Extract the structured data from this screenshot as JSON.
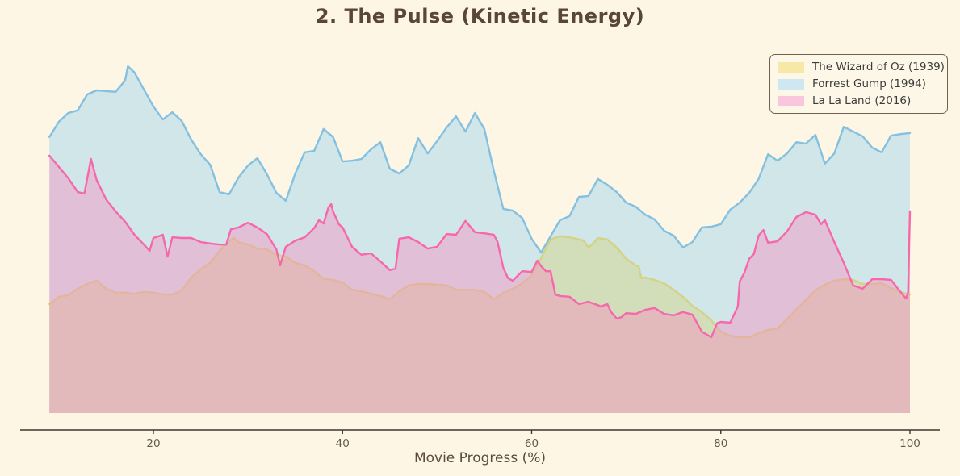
{
  "title": "2. The Pulse (Kinetic Energy)",
  "x_axis": {
    "label": "Movie Progress (%)",
    "ticks": [
      20,
      40,
      60,
      80,
      100
    ]
  },
  "colors": {
    "background": "#FDF6E5",
    "title_text": "#59453A",
    "axis_text": "#655A4C",
    "axis_line": "#3D372E",
    "legend_border": "#70604F",
    "legend_text": "#3C3C3C",
    "wizard_line": "#FFD21E",
    "forrest_line": "#84C0E0",
    "lala_line": "#F767AC"
  },
  "legend": [
    {
      "label": "The Wizard of Oz (1939)",
      "swatch": "#F7E8A8"
    },
    {
      "label": "Forrest Gump (1994)",
      "swatch": "#CFE7F1"
    },
    {
      "label": "La La Land (2016)",
      "swatch": "#FAC6DE"
    }
  ],
  "chart_data": {
    "type": "area",
    "title": "2. The Pulse (Kinetic Energy)",
    "xlabel": "Movie Progress (%)",
    "x_range": [
      9,
      100
    ],
    "xlim": [
      4,
      105
    ],
    "grid": false,
    "y_axis_visible": false,
    "y_unit": "kinetic energy (arbitrary units, 0-100)",
    "legend_position": "upper right",
    "series": [
      {
        "name": "The Wizard of Oz (1939)",
        "line_color": "#FFD21E",
        "fill_color": "#FFD32E",
        "fill_opacity": 0.5,
        "points": [
          [
            9,
            29.9
          ],
          [
            10,
            31.9
          ],
          [
            11,
            32.3
          ],
          [
            12,
            34.1
          ],
          [
            13,
            35.4
          ],
          [
            14,
            36.3
          ],
          [
            15,
            34.1
          ],
          [
            16,
            33
          ],
          [
            17,
            33
          ],
          [
            18,
            32.7
          ],
          [
            19,
            33.2
          ],
          [
            20,
            33
          ],
          [
            21,
            32.5
          ],
          [
            22,
            32.5
          ],
          [
            23,
            33.6
          ],
          [
            24,
            37.2
          ],
          [
            25,
            39.4
          ],
          [
            26,
            41.2
          ],
          [
            27,
            44.5
          ],
          [
            28,
            47.1
          ],
          [
            28.5,
            48
          ],
          [
            29,
            46.9
          ],
          [
            30,
            46.2
          ],
          [
            31,
            45.1
          ],
          [
            32,
            44.9
          ],
          [
            33,
            43.4
          ],
          [
            34,
            42.9
          ],
          [
            35,
            41.2
          ],
          [
            36,
            40.5
          ],
          [
            37,
            38.9
          ],
          [
            38,
            36.8
          ],
          [
            39,
            36.5
          ],
          [
            40,
            35.8
          ],
          [
            41,
            33.8
          ],
          [
            42,
            33.4
          ],
          [
            43,
            32.7
          ],
          [
            44,
            32.1
          ],
          [
            45,
            31.2
          ],
          [
            46,
            33.4
          ],
          [
            47,
            35
          ],
          [
            48,
            35.4
          ],
          [
            49,
            35.4
          ],
          [
            50,
            35.2
          ],
          [
            51,
            35
          ],
          [
            52,
            33.8
          ],
          [
            53,
            33.8
          ],
          [
            54,
            33.8
          ],
          [
            55,
            33.2
          ],
          [
            56,
            31.2
          ],
          [
            57,
            33
          ],
          [
            58,
            34.1
          ],
          [
            59,
            35.6
          ],
          [
            60,
            37.8
          ],
          [
            61,
            42.5
          ],
          [
            62,
            47.6
          ],
          [
            63,
            48.5
          ],
          [
            64,
            48.2
          ],
          [
            65,
            47.6
          ],
          [
            65.5,
            47.3
          ],
          [
            66,
            45.4
          ],
          [
            66.5,
            46.5
          ],
          [
            67,
            48
          ],
          [
            68,
            47.6
          ],
          [
            69,
            45.4
          ],
          [
            70,
            42.3
          ],
          [
            71,
            40.5
          ],
          [
            71.3,
            40.3
          ],
          [
            71.6,
            37
          ],
          [
            72,
            37.2
          ],
          [
            73,
            36.5
          ],
          [
            74,
            35.6
          ],
          [
            75,
            33.8
          ],
          [
            76,
            31.9
          ],
          [
            77,
            29.4
          ],
          [
            78,
            27.7
          ],
          [
            79,
            25.4
          ],
          [
            80,
            22.3
          ],
          [
            81,
            21.2
          ],
          [
            82,
            20.8
          ],
          [
            83,
            20.8
          ],
          [
            84,
            21.9
          ],
          [
            85,
            22.8
          ],
          [
            86,
            23.2
          ],
          [
            87,
            25.7
          ],
          [
            88,
            28.5
          ],
          [
            89,
            31
          ],
          [
            90,
            33.6
          ],
          [
            91,
            35.2
          ],
          [
            92,
            36.3
          ],
          [
            93,
            36.7
          ],
          [
            94,
            36.5
          ],
          [
            95,
            35.4
          ],
          [
            96,
            35.4
          ],
          [
            97,
            35.6
          ],
          [
            98,
            34.3
          ],
          [
            99,
            33.2
          ],
          [
            100,
            32.5
          ]
        ]
      },
      {
        "name": "Forrest Gump (1994)",
        "line_color": "#84C0E0",
        "fill_color": "#A5D5EC",
        "fill_opacity": 0.5,
        "points": [
          [
            9,
            75.7
          ],
          [
            10,
            79.9
          ],
          [
            11,
            82.3
          ],
          [
            12,
            83
          ],
          [
            13,
            87.4
          ],
          [
            14,
            88.5
          ],
          [
            15,
            88.3
          ],
          [
            16,
            88.1
          ],
          [
            17,
            91.2
          ],
          [
            17.3,
            95.1
          ],
          [
            18,
            93.4
          ],
          [
            19,
            88.7
          ],
          [
            20,
            84.1
          ],
          [
            21,
            80.5
          ],
          [
            22,
            82.5
          ],
          [
            23,
            80.1
          ],
          [
            24,
            75
          ],
          [
            25,
            71
          ],
          [
            26,
            68.1
          ],
          [
            27,
            60.6
          ],
          [
            28,
            60
          ],
          [
            29,
            64.6
          ],
          [
            30,
            67.9
          ],
          [
            31,
            69.9
          ],
          [
            32,
            65.5
          ],
          [
            33,
            60.4
          ],
          [
            34,
            58.2
          ],
          [
            35,
            65.7
          ],
          [
            36,
            71.5
          ],
          [
            37,
            71.9
          ],
          [
            38,
            77.9
          ],
          [
            39,
            75.7
          ],
          [
            40,
            69
          ],
          [
            41,
            69.2
          ],
          [
            42,
            69.7
          ],
          [
            43,
            72.3
          ],
          [
            44,
            74.3
          ],
          [
            45,
            67
          ],
          [
            46,
            65.7
          ],
          [
            47,
            67.9
          ],
          [
            48,
            75.4
          ],
          [
            49,
            71.2
          ],
          [
            50,
            74.6
          ],
          [
            51,
            78.3
          ],
          [
            52,
            81.4
          ],
          [
            53,
            77.2
          ],
          [
            54,
            82.3
          ],
          [
            55,
            77.9
          ],
          [
            56,
            66.4
          ],
          [
            57,
            56
          ],
          [
            58,
            55.5
          ],
          [
            59,
            53.5
          ],
          [
            60,
            47.8
          ],
          [
            61,
            44
          ],
          [
            62,
            48.5
          ],
          [
            63,
            52.9
          ],
          [
            64,
            54
          ],
          [
            65,
            59.3
          ],
          [
            66,
            59.5
          ],
          [
            67,
            64.2
          ],
          [
            68,
            62.6
          ],
          [
            69,
            60.6
          ],
          [
            70,
            57.7
          ],
          [
            71,
            56.6
          ],
          [
            72,
            54.4
          ],
          [
            73,
            53.1
          ],
          [
            74,
            50
          ],
          [
            75,
            48.7
          ],
          [
            76,
            45.4
          ],
          [
            77,
            46.9
          ],
          [
            78,
            50.9
          ],
          [
            79,
            51.1
          ],
          [
            80,
            51.8
          ],
          [
            81,
            55.8
          ],
          [
            82,
            57.7
          ],
          [
            83,
            60.4
          ],
          [
            84,
            64.2
          ],
          [
            85,
            71
          ],
          [
            86,
            69.2
          ],
          [
            87,
            71.2
          ],
          [
            88,
            74.3
          ],
          [
            89,
            73.9
          ],
          [
            90,
            76.3
          ],
          [
            91,
            68.4
          ],
          [
            92,
            71.2
          ],
          [
            93,
            78.5
          ],
          [
            94,
            77.2
          ],
          [
            95,
            75.9
          ],
          [
            96,
            72.8
          ],
          [
            97,
            71.5
          ],
          [
            98,
            76.1
          ],
          [
            99,
            76.5
          ],
          [
            100,
            76.8
          ]
        ]
      },
      {
        "name": "La La Land (2016)",
        "line_color": "#F767AC",
        "fill_color": "#F98BBE",
        "fill_opacity": 0.42,
        "points": [
          [
            9,
            70.6
          ],
          [
            10,
            67.5
          ],
          [
            11,
            64.4
          ],
          [
            12,
            60.6
          ],
          [
            12.7,
            60.2
          ],
          [
            13.4,
            69.7
          ],
          [
            14,
            63.9
          ],
          [
            15,
            58.6
          ],
          [
            16,
            55.3
          ],
          [
            17,
            52.5
          ],
          [
            18,
            48.9
          ],
          [
            19,
            46.2
          ],
          [
            19.6,
            44.5
          ],
          [
            20,
            48
          ],
          [
            21,
            48.9
          ],
          [
            21.5,
            42.9
          ],
          [
            22,
            48.2
          ],
          [
            23,
            48
          ],
          [
            24,
            48
          ],
          [
            25,
            46.9
          ],
          [
            26,
            46.5
          ],
          [
            27,
            46.2
          ],
          [
            27.7,
            46.2
          ],
          [
            28.2,
            50.4
          ],
          [
            29,
            50.9
          ],
          [
            30,
            52.2
          ],
          [
            31,
            50.9
          ],
          [
            32,
            49.1
          ],
          [
            33,
            44.9
          ],
          [
            33.4,
            40.5
          ],
          [
            34,
            45.6
          ],
          [
            35,
            47.3
          ],
          [
            36,
            48.2
          ],
          [
            37,
            50.7
          ],
          [
            37.5,
            52.9
          ],
          [
            38,
            52
          ],
          [
            38.5,
            56.4
          ],
          [
            38.8,
            57.3
          ],
          [
            39,
            55.3
          ],
          [
            39.6,
            51.8
          ],
          [
            40,
            50.9
          ],
          [
            41,
            45.6
          ],
          [
            42,
            43.4
          ],
          [
            43,
            43.8
          ],
          [
            44,
            41.6
          ],
          [
            45,
            39.2
          ],
          [
            45.6,
            39.6
          ],
          [
            46,
            47.8
          ],
          [
            47,
            48.2
          ],
          [
            48,
            46.9
          ],
          [
            49,
            45.1
          ],
          [
            50,
            45.6
          ],
          [
            51,
            49.1
          ],
          [
            52,
            48.9
          ],
          [
            53,
            52.7
          ],
          [
            54,
            49.6
          ],
          [
            55,
            49.3
          ],
          [
            56,
            48.9
          ],
          [
            56.4,
            46.9
          ],
          [
            57,
            39.8
          ],
          [
            57.5,
            37
          ],
          [
            58,
            36.3
          ],
          [
            59,
            38.9
          ],
          [
            60,
            38.7
          ],
          [
            60.6,
            41.8
          ],
          [
            61,
            40.3
          ],
          [
            61.5,
            38.9
          ],
          [
            62,
            38.9
          ],
          [
            62.5,
            32.5
          ],
          [
            63,
            32.1
          ],
          [
            64,
            31.9
          ],
          [
            65,
            29.9
          ],
          [
            66,
            30.5
          ],
          [
            67,
            29.6
          ],
          [
            67.3,
            29.2
          ],
          [
            68,
            29.9
          ],
          [
            68.4,
            27.7
          ],
          [
            69,
            25.9
          ],
          [
            69.5,
            26.3
          ],
          [
            70,
            27.4
          ],
          [
            71,
            27.2
          ],
          [
            72,
            28.3
          ],
          [
            73,
            28.8
          ],
          [
            74,
            27.2
          ],
          [
            75,
            26.8
          ],
          [
            76,
            27.7
          ],
          [
            77,
            27
          ],
          [
            78,
            22.3
          ],
          [
            79,
            20.8
          ],
          [
            79.6,
            24.6
          ],
          [
            80,
            25
          ],
          [
            81,
            24.8
          ],
          [
            81.8,
            29.2
          ],
          [
            82,
            36.1
          ],
          [
            82.5,
            38.5
          ],
          [
            83,
            42.3
          ],
          [
            83.5,
            43.6
          ],
          [
            84,
            48.7
          ],
          [
            84.5,
            50.2
          ],
          [
            85,
            46.7
          ],
          [
            86,
            47.1
          ],
          [
            87,
            49.8
          ],
          [
            88,
            53.8
          ],
          [
            89,
            55.1
          ],
          [
            90,
            54.4
          ],
          [
            90.6,
            51.8
          ],
          [
            91,
            52.9
          ],
          [
            92,
            46.9
          ],
          [
            93,
            41.2
          ],
          [
            94,
            35
          ],
          [
            95,
            34.1
          ],
          [
            96,
            36.7
          ],
          [
            97,
            36.7
          ],
          [
            98,
            36.5
          ],
          [
            99,
            33.2
          ],
          [
            99.6,
            31.4
          ],
          [
            99.8,
            33.2
          ],
          [
            100,
            55.3
          ]
        ]
      }
    ]
  }
}
